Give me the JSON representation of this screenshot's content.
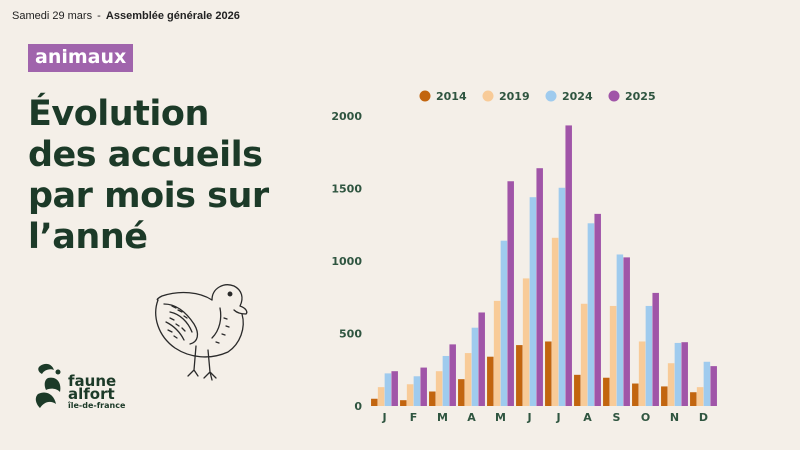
{
  "header": {
    "date": "Samedi 29 mars",
    "separator": "-",
    "event": "Assemblée générale 2026"
  },
  "tag": "animaux",
  "title_lines": [
    "Évolution",
    "des accueils",
    "par mois sur",
    "l’anné"
  ],
  "logo": {
    "line1": "faune",
    "line2": "alfort",
    "line3": "île-de-france"
  },
  "colors": {
    "background": "#f4efe8",
    "tag": "#a064ac",
    "title": "#1c3a28"
  },
  "chart_data": {
    "type": "bar",
    "categories": [
      "J",
      "F",
      "M",
      "A",
      "M",
      "J",
      "J",
      "A",
      "S",
      "O",
      "N",
      "D"
    ],
    "series": [
      {
        "name": "2014",
        "color": "#c2650f",
        "values": [
          50,
          40,
          100,
          185,
          340,
          420,
          445,
          215,
          195,
          155,
          135,
          95
        ]
      },
      {
        "name": "2019",
        "color": "#f8cb98",
        "values": [
          130,
          150,
          240,
          365,
          725,
          880,
          1160,
          705,
          690,
          445,
          295,
          130
        ]
      },
      {
        "name": "2024",
        "color": "#9fcbee",
        "values": [
          225,
          205,
          345,
          540,
          1140,
          1440,
          1505,
          1260,
          1045,
          690,
          435,
          305
        ]
      },
      {
        "name": "2025",
        "color": "#a055a8",
        "values": [
          240,
          265,
          425,
          645,
          1550,
          1640,
          1935,
          1325,
          1025,
          780,
          440,
          275
        ]
      }
    ],
    "yticks": [
      0,
      500,
      1000,
      1500,
      2000
    ],
    "ylim": [
      0,
      2000
    ],
    "legend_position": "top",
    "grid": false
  }
}
